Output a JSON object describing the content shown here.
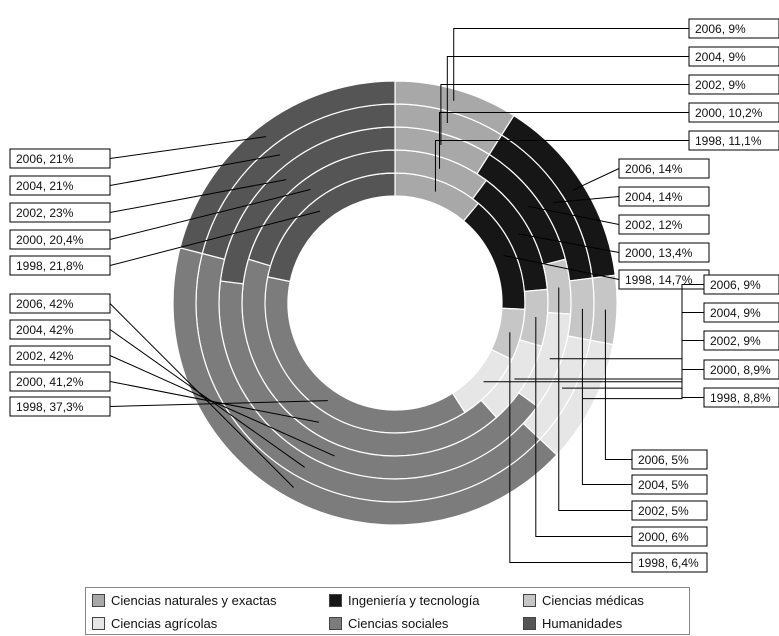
{
  "chart_data": {
    "type": "pie",
    "subtype": "multi-ring donut",
    "categories": [
      "Ciencias naturales y exactas",
      "Ingeniería y tecnología",
      "Ciencias médicas",
      "Ciencias agrícolas",
      "Ciencias sociales",
      "Humanidades"
    ],
    "colors": [
      "#a8a8a8",
      "#161616",
      "#c6c6c6",
      "#e6e6e6",
      "#7c7c7c",
      "#555555"
    ],
    "rings": [
      {
        "name": "1998",
        "values": [
          11.1,
          14.7,
          6.4,
          8.8,
          37.3,
          21.8
        ],
        "labels": [
          "1998, 11,1%",
          "1998, 14,7%",
          "1998, 6,4%",
          "1998, 8,8%",
          "1998, 37,3%",
          "1998, 21,8%"
        ]
      },
      {
        "name": "2000",
        "values": [
          10.2,
          13.4,
          6,
          8.9,
          41.2,
          20.4
        ],
        "labels": [
          "2000, 10,2%",
          "2000, 13,4%",
          "2000, 6%",
          "2000, 8,9%",
          "2000, 41,2%",
          "2000, 20,4%"
        ]
      },
      {
        "name": "2002",
        "values": [
          9,
          12,
          5,
          9,
          42,
          23
        ],
        "labels": [
          "2002, 9%",
          "2002, 12%",
          "2002, 5%",
          "2002, 9%",
          "2002, 42%",
          "2002, 23%"
        ]
      },
      {
        "name": "2004",
        "values": [
          9,
          14,
          5,
          9,
          42,
          21
        ],
        "labels": [
          "2004, 9%",
          "2004, 14%",
          "2004, 5%",
          "2004, 9%",
          "2004, 42%",
          "2004, 21%"
        ]
      },
      {
        "name": "2006",
        "values": [
          9,
          14,
          5,
          9,
          42,
          21
        ],
        "labels": [
          "2006, 9%",
          "2006, 14%",
          "2006, 5%",
          "2006, 9%",
          "2006, 42%",
          "2006, 21%"
        ]
      }
    ],
    "legend": {
      "position": "bottom",
      "items": [
        "Ciencias naturales y exactas",
        "Ingeniería y tecnología",
        "Ciencias médicas",
        "Ciencias agrícolas",
        "Ciencias sociales",
        "Humanidades"
      ]
    }
  }
}
